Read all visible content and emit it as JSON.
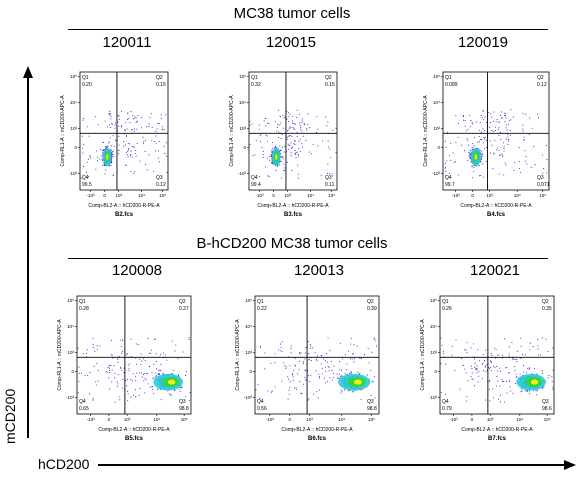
{
  "figure": {
    "group_titles": [
      "MC38 tumor cells",
      "B-hCD200 MC38 tumor cells"
    ],
    "y_axis_title": "mCD200",
    "x_axis_title": "hCD200",
    "panel_x_label": "Comp-BL2-A :: hCD200-R-PE-A",
    "panel_y_label": "Comp-RL1-A :: mCD200-APC-A",
    "y_ticks": [
      "10⁵",
      "10⁴",
      "10³",
      "0",
      "-10³"
    ],
    "x_ticks": [
      "-10³",
      "0",
      "10³",
      "10⁴",
      "10⁵"
    ],
    "colors": {
      "dot_blue": "#2a2ad8",
      "density_cyan": "#2ad0d8",
      "density_green": "#3ad23a",
      "density_yellow": "#f0f020",
      "gate_line": "#000000"
    }
  },
  "chart_data": [
    {
      "type": "scatter",
      "title": "120011",
      "file": "B2.fcs",
      "group": "MC38 tumor cells",
      "quadrant_values": {
        "Q1": "0.20",
        "Q2": "0.15",
        "Q3": "0.12",
        "Q4": "99.5"
      },
      "cluster": "low-low"
    },
    {
      "type": "scatter",
      "title": "120015",
      "file": "B3.fcs",
      "group": "MC38 tumor cells",
      "quadrant_values": {
        "Q1": "0.32",
        "Q2": "0.15",
        "Q3": "0.11",
        "Q4": "99.4"
      },
      "cluster": "low-low"
    },
    {
      "type": "scatter",
      "title": "120019",
      "file": "B4.fcs",
      "group": "MC38 tumor cells",
      "quadrant_values": {
        "Q1": "0.089",
        "Q2": "0.12",
        "Q3": "0.071",
        "Q4": "99.7"
      },
      "cluster": "low-low"
    },
    {
      "type": "scatter",
      "title": "120008",
      "file": "B5.fcs",
      "group": "B-hCD200 MC38 tumor cells",
      "quadrant_values": {
        "Q1": "0.28",
        "Q2": "0.27",
        "Q3": "98.8",
        "Q4": "0.65"
      },
      "cluster": "high-x"
    },
    {
      "type": "scatter",
      "title": "120013",
      "file": "B6.fcs",
      "group": "B-hCD200 MC38 tumor cells",
      "quadrant_values": {
        "Q1": "0.22",
        "Q2": "0.39",
        "Q3": "98.8",
        "Q4": "0.56"
      },
      "cluster": "high-x"
    },
    {
      "type": "scatter",
      "title": "120021",
      "file": "B7.fcs",
      "group": "B-hCD200 MC38 tumor cells",
      "quadrant_values": {
        "Q1": "0.26",
        "Q2": "0.35",
        "Q3": "98.6",
        "Q4": "0.79"
      },
      "cluster": "high-x"
    }
  ]
}
